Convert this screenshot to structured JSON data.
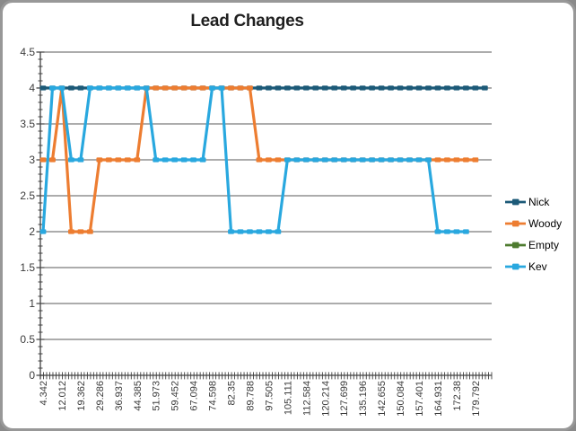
{
  "chart_data": {
    "type": "line",
    "title": "Lead Changes",
    "xlabel": "",
    "ylabel": "",
    "ylim": [
      0,
      4.5
    ],
    "ytick_step": 0.5,
    "y_tick_labels": [
      "0",
      "0.5",
      "1",
      "1.5",
      "2",
      "2.5",
      "3",
      "3.5",
      "4",
      "4.5"
    ],
    "grid": "horizontal",
    "legend_position": "right",
    "x_tick_labels": [
      "4.342",
      "12.012",
      "19.362",
      "29.286",
      "36.937",
      "44.385",
      "51.973",
      "59.452",
      "67.094",
      "74.598",
      "82.35",
      "89.788",
      "97.505",
      "105.111",
      "112.584",
      "120.214",
      "127.699",
      "135.196",
      "142.655",
      "150.084",
      "157.401",
      "164.931",
      "172.38",
      "179.792"
    ],
    "x_label_every_n_points": 2,
    "n_points": 48,
    "series": [
      {
        "name": "Nick",
        "color": "#1C5A78",
        "values": [
          4,
          4,
          4,
          4,
          4,
          4,
          4,
          4,
          4,
          4,
          4,
          4,
          4,
          4,
          4,
          4,
          4,
          4,
          4,
          4,
          4,
          4,
          4,
          4,
          4,
          4,
          4,
          4,
          4,
          4,
          4,
          4,
          4,
          4,
          4,
          4,
          4,
          4,
          4,
          4,
          4,
          4,
          4,
          4,
          4,
          4,
          4,
          4
        ]
      },
      {
        "name": "Woody",
        "color": "#ED7D31",
        "values": [
          3,
          3,
          4,
          2,
          2,
          2,
          3,
          3,
          3,
          3,
          3,
          4,
          4,
          4,
          4,
          4,
          4,
          4,
          4,
          4,
          4,
          4,
          4,
          3,
          3,
          3,
          3,
          3,
          3,
          3,
          3,
          3,
          3,
          3,
          3,
          3,
          3,
          3,
          3,
          3,
          3,
          3,
          3,
          3,
          3,
          3,
          3
        ]
      },
      {
        "name": "Empty",
        "color": "#4E7B2F",
        "values": []
      },
      {
        "name": "Kev",
        "color": "#29A8DF",
        "values": [
          2,
          4,
          4,
          3,
          3,
          4,
          4,
          4,
          4,
          4,
          4,
          4,
          3,
          3,
          3,
          3,
          3,
          3,
          4,
          4,
          2,
          2,
          2,
          2,
          2,
          2,
          3,
          3,
          3,
          3,
          3,
          3,
          3,
          3,
          3,
          3,
          3,
          3,
          3,
          3,
          3,
          3,
          2,
          2,
          2,
          2
        ]
      }
    ],
    "colors": {
      "gridline": "#595959",
      "axis": "#404040",
      "tick_text": "#3b3b3b",
      "frame_border": "#989898"
    }
  }
}
